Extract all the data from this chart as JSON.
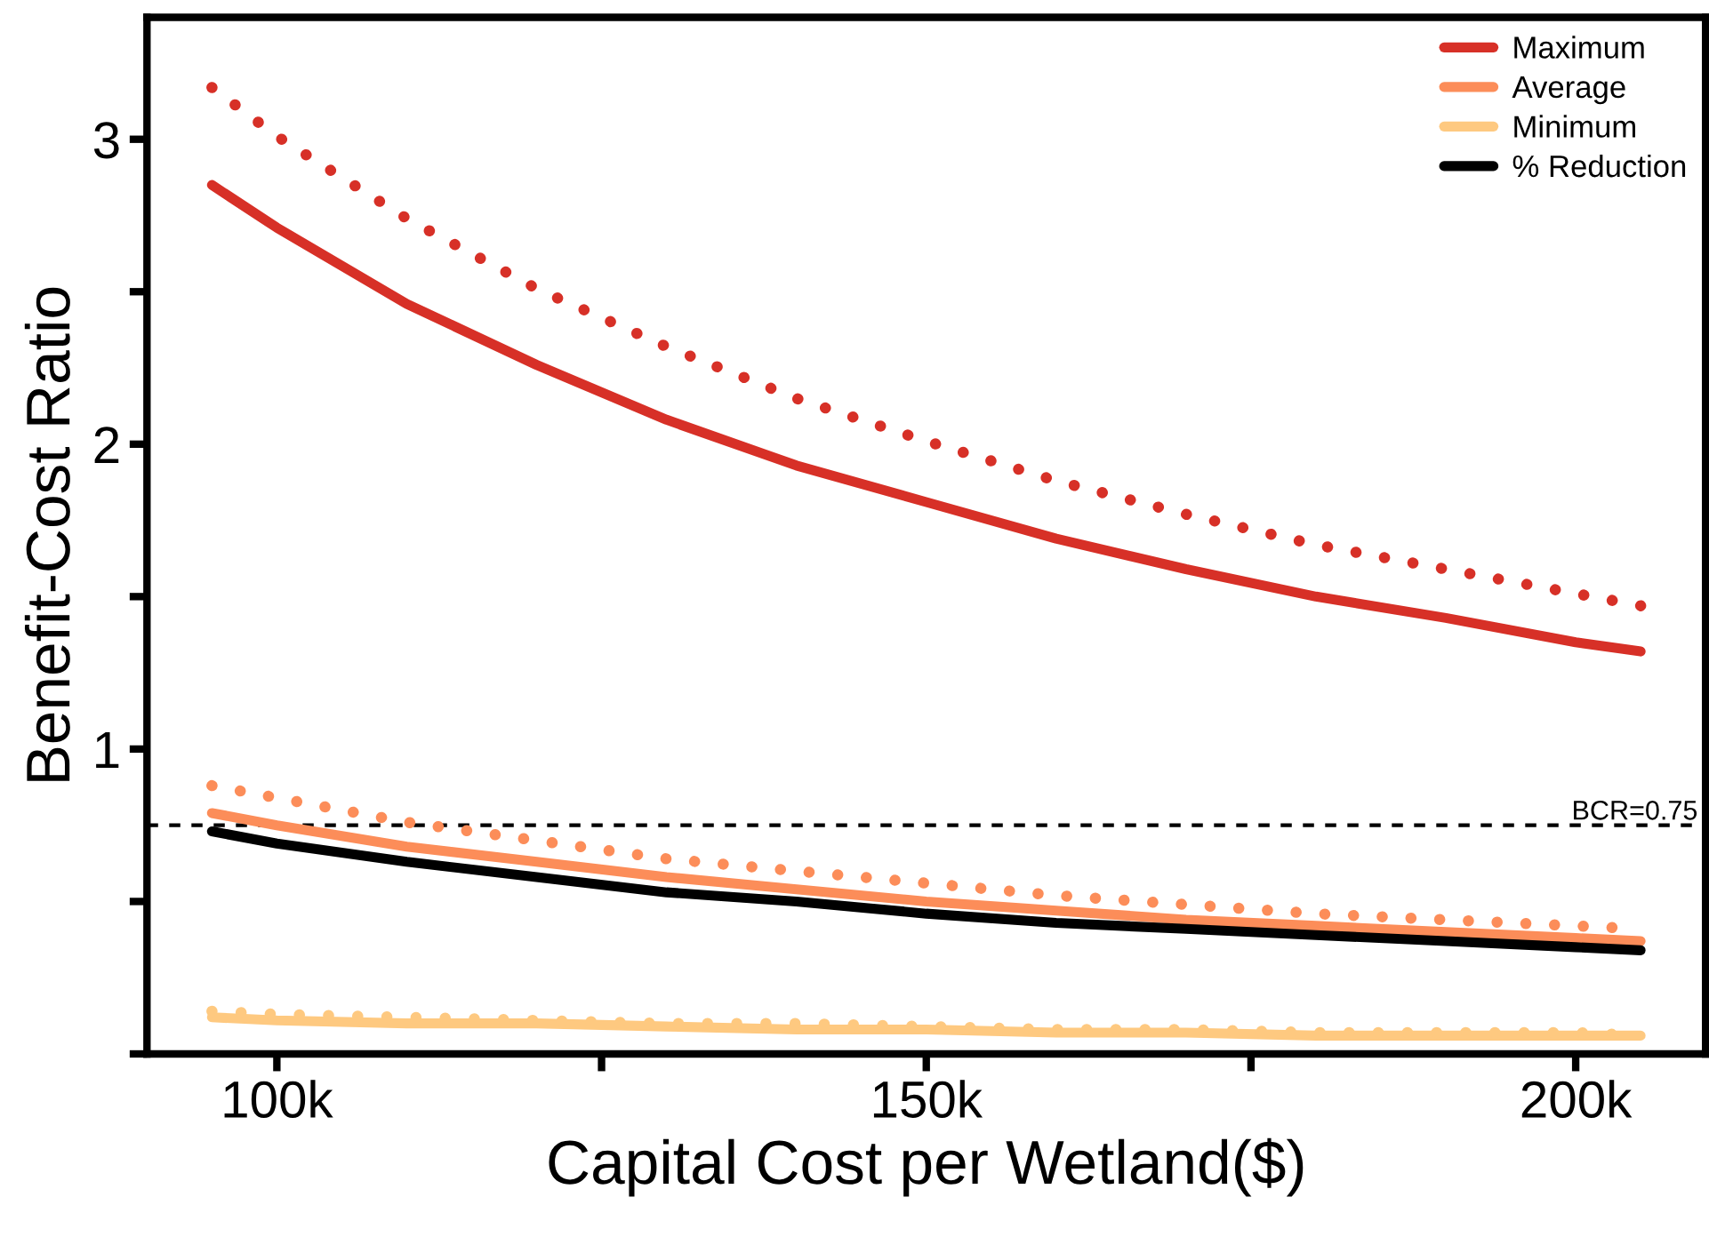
{
  "chart_data": {
    "type": "line",
    "xlabel": "Capital Cost per Wetland($)",
    "ylabel": "Benefit-Cost Ratio",
    "x": [
      95000,
      100000,
      110000,
      120000,
      130000,
      140000,
      150000,
      160000,
      170000,
      180000,
      190000,
      200000,
      205000
    ],
    "series": [
      {
        "name": "Maximum",
        "color": "#d73027",
        "line_style": "solid",
        "values": [
          2.85,
          2.71,
          2.46,
          2.26,
          2.08,
          1.93,
          1.81,
          1.69,
          1.59,
          1.5,
          1.43,
          1.35,
          1.32
        ]
      },
      {
        "name": "Average",
        "color": "#fc8d59",
        "line_style": "solid",
        "values": [
          0.79,
          0.75,
          0.68,
          0.63,
          0.58,
          0.54,
          0.5,
          0.47,
          0.44,
          0.42,
          0.4,
          0.38,
          0.37
        ]
      },
      {
        "name": "Minimum",
        "color": "#fec980",
        "line_style": "solid",
        "values": [
          0.12,
          0.11,
          0.1,
          0.1,
          0.09,
          0.08,
          0.08,
          0.07,
          0.07,
          0.06,
          0.06,
          0.06,
          0.06
        ]
      },
      {
        "name": "% Reduction",
        "color": "#000000",
        "line_style": "solid",
        "values": [
          0.73,
          0.69,
          0.63,
          0.58,
          0.53,
          0.5,
          0.46,
          0.43,
          0.41,
          0.39,
          0.37,
          0.35,
          0.34
        ]
      },
      {
        "color": "#d73027",
        "line_style": "dotted",
        "values": [
          3.17,
          3.01,
          2.74,
          2.51,
          2.32,
          2.15,
          2.01,
          1.88,
          1.77,
          1.67,
          1.59,
          1.51,
          1.47
        ]
      },
      {
        "color": "#fc8d59",
        "line_style": "dotted",
        "values": [
          0.88,
          0.84,
          0.76,
          0.7,
          0.64,
          0.6,
          0.56,
          0.52,
          0.49,
          0.46,
          0.44,
          0.42,
          0.41
        ]
      },
      {
        "color": "#fec980",
        "line_style": "dotted",
        "values": [
          0.14,
          0.13,
          0.12,
          0.11,
          0.1,
          0.1,
          0.09,
          0.08,
          0.08,
          0.07,
          0.07,
          0.07,
          0.06
        ]
      }
    ],
    "xlim": [
      90000,
      210000
    ],
    "xticks": [
      {
        "value": 100000,
        "label": "100k"
      },
      {
        "value": 125000,
        "label": null
      },
      {
        "value": 150000,
        "label": "150k"
      },
      {
        "value": 175000,
        "label": null
      },
      {
        "value": 200000,
        "label": "200k"
      }
    ],
    "ylim": [
      0,
      3.4
    ],
    "yticks": [
      {
        "value": 0,
        "label": null
      },
      {
        "value": 0.5,
        "label": null
      },
      1,
      {
        "value": 1.5,
        "label": null
      },
      2,
      {
        "value": 2.5,
        "label": null
      },
      3
    ],
    "ref_lines": [
      {
        "axis": "y",
        "value": 0.75,
        "label": "BCR=0.75",
        "color": "#000000",
        "line_style": "dashed"
      }
    ],
    "legend": "top right",
    "grid": false
  }
}
